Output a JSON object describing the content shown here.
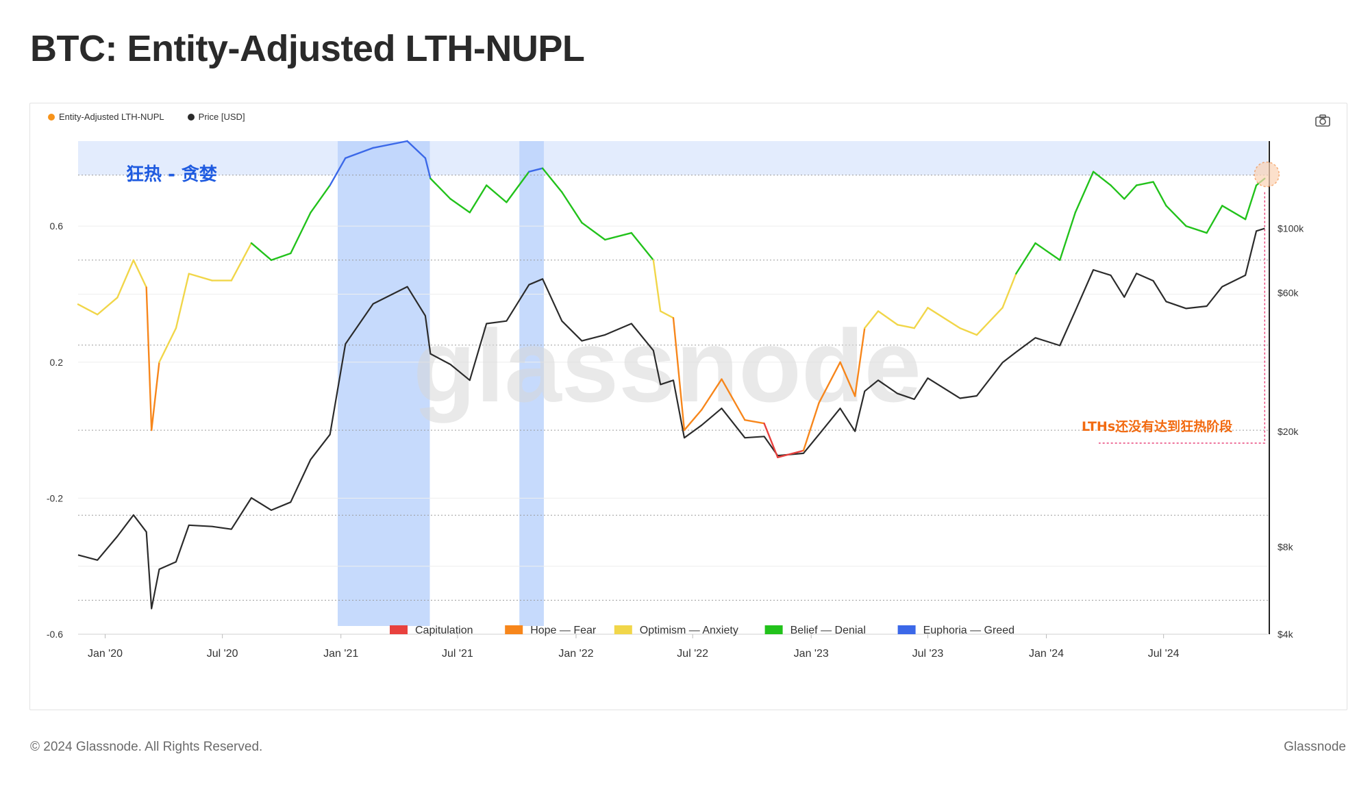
{
  "title": "BTC: Entity-Adjusted LTH-NUPL",
  "legend": [
    {
      "label": "Entity-Adjusted LTH-NUPL",
      "color": "#f7931a"
    },
    {
      "label": "Price [USD]",
      "color": "#2b2b2b"
    }
  ],
  "camera_icon": "camera-icon",
  "footer": {
    "copyright": "© 2024 Glassnode. All Rights Reserved.",
    "brand": "Glassnode"
  },
  "watermark": "glassnode",
  "colors": {
    "capitulation": "#e8413e",
    "hope_fear": "#f7861b",
    "optimism_anxiety": "#f1d649",
    "belief_denial": "#22c21b",
    "euphoria_greed": "#3b68e8",
    "price": "#2b2b2b",
    "zone_fill": "#e3ecfd",
    "highlight_fill": "#bcd3fb",
    "annotation": "#f26a10"
  },
  "chart_data": {
    "type": "line",
    "xlim": [
      "2019-11-20",
      "2024-12-10"
    ],
    "x_ticks": [
      "Jan '20",
      "Jul '20",
      "Jan '21",
      "Jul '21",
      "Jan '22",
      "Jul '22",
      "Jan '23",
      "Jul '23",
      "Jan '24",
      "Jul '24"
    ],
    "y_left": {
      "ticks": [
        "0.6",
        "0.2",
        "-0.2",
        "-0.6"
      ],
      "tick_values": [
        0.6,
        0.2,
        -0.2,
        -0.6
      ],
      "range": [
        -0.6,
        0.85
      ]
    },
    "y_right": {
      "scale": "log",
      "ticks": [
        "$100k",
        "$60k",
        "$20k",
        "$8k",
        "$4k"
      ],
      "tick_values": [
        100000,
        60000,
        20000,
        8000,
        4000
      ],
      "range": [
        4000,
        200000
      ]
    },
    "euphoria_zone": {
      "from": 0.75,
      "label": "狂热 - 贪婪"
    },
    "highlight_periods": [
      [
        "2020-12-27",
        "2021-05-19"
      ],
      [
        "2021-10-05",
        "2021-11-12"
      ]
    ],
    "annotation": "LTHs还没有达到狂热阶段",
    "band_legend": [
      {
        "label": "Capitulation",
        "color": "#e8413e"
      },
      {
        "label": "Hope — Fear",
        "color": "#f7861b"
      },
      {
        "label": "Optimism — Anxiety",
        "color": "#f1d649"
      },
      {
        "label": "Belief — Denial",
        "color": "#22c21b"
      },
      {
        "label": "Euphoria — Greed",
        "color": "#3b68e8"
      }
    ],
    "series": [
      {
        "name": "Entity-Adjusted LTH-NUPL",
        "points": [
          [
            "2019-11-20",
            0.37
          ],
          [
            "2019-12-20",
            0.34
          ],
          [
            "2020-01-20",
            0.39
          ],
          [
            "2020-02-14",
            0.5
          ],
          [
            "2020-03-05",
            0.42
          ],
          [
            "2020-03-13",
            0.0
          ],
          [
            "2020-03-25",
            0.2
          ],
          [
            "2020-04-20",
            0.3
          ],
          [
            "2020-05-10",
            0.46
          ],
          [
            "2020-06-15",
            0.44
          ],
          [
            "2020-07-15",
            0.44
          ],
          [
            "2020-08-15",
            0.55
          ],
          [
            "2020-09-15",
            0.5
          ],
          [
            "2020-10-15",
            0.52
          ],
          [
            "2020-11-15",
            0.64
          ],
          [
            "2020-12-15",
            0.72
          ],
          [
            "2021-01-08",
            0.8
          ],
          [
            "2021-02-20",
            0.83
          ],
          [
            "2021-04-14",
            0.85
          ],
          [
            "2021-05-12",
            0.8
          ],
          [
            "2021-05-20",
            0.74
          ],
          [
            "2021-06-20",
            0.68
          ],
          [
            "2021-07-20",
            0.64
          ],
          [
            "2021-08-15",
            0.72
          ],
          [
            "2021-09-15",
            0.67
          ],
          [
            "2021-10-20",
            0.76
          ],
          [
            "2021-11-10",
            0.77
          ],
          [
            "2021-12-10",
            0.7
          ],
          [
            "2022-01-10",
            0.61
          ],
          [
            "2022-02-15",
            0.56
          ],
          [
            "2022-03-28",
            0.58
          ],
          [
            "2022-05-01",
            0.5
          ],
          [
            "2022-05-12",
            0.35
          ],
          [
            "2022-06-01",
            0.33
          ],
          [
            "2022-06-18",
            0.0
          ],
          [
            "2022-07-15",
            0.06
          ],
          [
            "2022-08-15",
            0.15
          ],
          [
            "2022-09-20",
            0.03
          ],
          [
            "2022-10-20",
            0.02
          ],
          [
            "2022-11-10",
            -0.08
          ],
          [
            "2022-12-20",
            -0.06
          ],
          [
            "2023-01-13",
            0.08
          ],
          [
            "2023-02-15",
            0.2
          ],
          [
            "2023-03-10",
            0.1
          ],
          [
            "2023-03-25",
            0.3
          ],
          [
            "2023-04-15",
            0.35
          ],
          [
            "2023-05-15",
            0.31
          ],
          [
            "2023-06-10",
            0.3
          ],
          [
            "2023-07-01",
            0.36
          ],
          [
            "2023-08-20",
            0.3
          ],
          [
            "2023-09-15",
            0.28
          ],
          [
            "2023-10-25",
            0.36
          ],
          [
            "2023-11-15",
            0.46
          ],
          [
            "2023-12-15",
            0.55
          ],
          [
            "2024-01-22",
            0.5
          ],
          [
            "2024-02-15",
            0.64
          ],
          [
            "2024-03-14",
            0.76
          ],
          [
            "2024-04-10",
            0.72
          ],
          [
            "2024-05-01",
            0.68
          ],
          [
            "2024-05-20",
            0.72
          ],
          [
            "2024-06-15",
            0.73
          ],
          [
            "2024-07-05",
            0.66
          ],
          [
            "2024-08-05",
            0.6
          ],
          [
            "2024-09-06",
            0.58
          ],
          [
            "2024-09-30",
            0.66
          ],
          [
            "2024-11-05",
            0.62
          ],
          [
            "2024-11-22",
            0.72
          ],
          [
            "2024-12-05",
            0.74
          ]
        ]
      },
      {
        "name": "Price [USD]",
        "points": [
          [
            "2019-11-20",
            7500
          ],
          [
            "2019-12-20",
            7200
          ],
          [
            "2020-01-20",
            8700
          ],
          [
            "2020-02-14",
            10300
          ],
          [
            "2020-03-05",
            9000
          ],
          [
            "2020-03-13",
            4900
          ],
          [
            "2020-03-25",
            6700
          ],
          [
            "2020-04-20",
            7100
          ],
          [
            "2020-05-10",
            9500
          ],
          [
            "2020-06-15",
            9400
          ],
          [
            "2020-07-15",
            9200
          ],
          [
            "2020-08-15",
            11800
          ],
          [
            "2020-09-15",
            10700
          ],
          [
            "2020-10-15",
            11400
          ],
          [
            "2020-11-15",
            16000
          ],
          [
            "2020-12-15",
            19500
          ],
          [
            "2021-01-08",
            40000
          ],
          [
            "2021-02-20",
            55000
          ],
          [
            "2021-04-14",
            63000
          ],
          [
            "2021-05-12",
            50000
          ],
          [
            "2021-05-20",
            37000
          ],
          [
            "2021-06-20",
            34000
          ],
          [
            "2021-07-20",
            30000
          ],
          [
            "2021-08-15",
            47000
          ],
          [
            "2021-09-15",
            48000
          ],
          [
            "2021-10-20",
            64000
          ],
          [
            "2021-11-10",
            67000
          ],
          [
            "2021-12-10",
            48000
          ],
          [
            "2022-01-10",
            41000
          ],
          [
            "2022-02-15",
            43000
          ],
          [
            "2022-03-28",
            47000
          ],
          [
            "2022-05-01",
            38000
          ],
          [
            "2022-05-12",
            29000
          ],
          [
            "2022-06-01",
            30000
          ],
          [
            "2022-06-18",
            19000
          ],
          [
            "2022-07-15",
            21000
          ],
          [
            "2022-08-15",
            24000
          ],
          [
            "2022-09-20",
            19000
          ],
          [
            "2022-10-20",
            19200
          ],
          [
            "2022-11-10",
            16500
          ],
          [
            "2022-12-20",
            16800
          ],
          [
            "2023-01-13",
            19500
          ],
          [
            "2023-02-15",
            24000
          ],
          [
            "2023-03-10",
            20000
          ],
          [
            "2023-03-25",
            27500
          ],
          [
            "2023-04-15",
            30000
          ],
          [
            "2023-05-15",
            27000
          ],
          [
            "2023-06-10",
            25800
          ],
          [
            "2023-07-01",
            30500
          ],
          [
            "2023-08-20",
            26000
          ],
          [
            "2023-09-15",
            26500
          ],
          [
            "2023-10-25",
            34500
          ],
          [
            "2023-11-15",
            37500
          ],
          [
            "2023-12-15",
            42000
          ],
          [
            "2024-01-22",
            39500
          ],
          [
            "2024-02-15",
            52000
          ],
          [
            "2024-03-14",
            72000
          ],
          [
            "2024-04-10",
            69000
          ],
          [
            "2024-05-01",
            58000
          ],
          [
            "2024-05-20",
            70000
          ],
          [
            "2024-06-15",
            66000
          ],
          [
            "2024-07-05",
            56000
          ],
          [
            "2024-08-05",
            53000
          ],
          [
            "2024-09-06",
            54000
          ],
          [
            "2024-09-30",
            63000
          ],
          [
            "2024-11-05",
            69000
          ],
          [
            "2024-11-22",
            98000
          ],
          [
            "2024-12-05",
            100000
          ]
        ]
      }
    ]
  }
}
